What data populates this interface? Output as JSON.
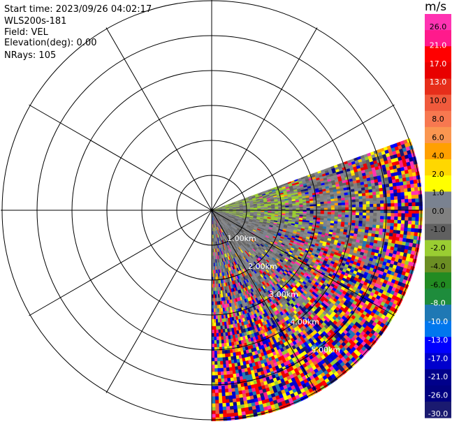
{
  "header": {
    "start_time": "Start time: 2023/09/26 04:02:17",
    "instrument": "WLS200s-181",
    "field": "Field: VEL",
    "elevation": "Elevation(deg): 0.00",
    "nrays": "NRays: 105"
  },
  "chart_data": {
    "type": "heatmap",
    "projection": "polar-ppi",
    "field": "VEL",
    "units": "m/s",
    "elevation_deg": 0.0,
    "n_rays": 105,
    "sector_azimuth_deg": [
      70,
      180
    ],
    "range_rings_km": [
      "1.00km",
      "2.00km",
      "3.00km",
      "4.00km",
      "5.00km"
    ],
    "ring_count": 6,
    "spoke_step_deg": 30,
    "max_range_km": 5.0,
    "grid": true,
    "colorbar": {
      "unit": "m/s",
      "ticks": [
        "26.0",
        "21.0",
        "17.0",
        "13.0",
        "10.0",
        "8.0",
        "6.0",
        "4.0",
        "2.0",
        "1.0",
        "0.0",
        "-1.0",
        "-2.0",
        "-4.0",
        "-6.0",
        "-8.0",
        "-10.0",
        "-13.0",
        "-17.0",
        "-21.0",
        "-26.0",
        "-30.0"
      ],
      "colors": [
        "#ff33b2",
        "#ff1a8c",
        "#ff0000",
        "#e80000",
        "#e62e1a",
        "#f05a3c",
        "#f77850",
        "#fa9650",
        "#ffa000",
        "#ffd700",
        "#ffff00",
        "#7a8290",
        "#808080",
        "#606060",
        "#9acd32",
        "#6b8e23",
        "#228b22",
        "#1e8c3c",
        "#1f78b4",
        "#0077ee",
        "#0000ff",
        "#0000cd",
        "#00008b",
        "#000080",
        "#1a1a70"
      ]
    }
  }
}
